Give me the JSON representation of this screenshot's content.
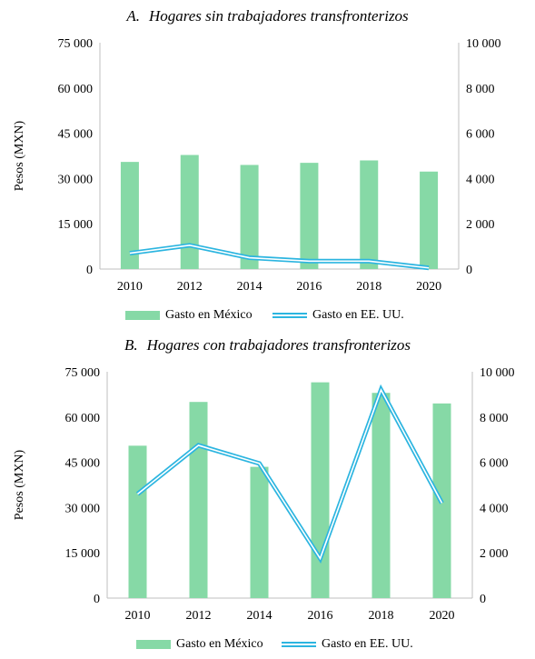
{
  "colors": {
    "bar": "#86d9a6",
    "line_outer": "#2cb5e0",
    "line_inner": "#ffffff",
    "axis": "#bfbfbf"
  },
  "chart_data": [
    {
      "type": "bar+line",
      "title_letter": "A.",
      "title": "Hogares sin trabajadores transfronterizos",
      "ylabel": "Pesos (MXN)",
      "xlabel": "",
      "categories": [
        "2010",
        "2012",
        "2014",
        "2016",
        "2018",
        "2020"
      ],
      "ylim_left": [
        0,
        75000
      ],
      "ylim_right": [
        0,
        10000
      ],
      "yticks_left": [
        "75 000",
        "60 000",
        "45 000",
        "30 000",
        "15 000",
        "0"
      ],
      "yticks_right": [
        "10 000",
        "8 000",
        "6 000",
        "4 000",
        "2 000",
        "0"
      ],
      "series": [
        {
          "name": "Gasto en México",
          "type": "bar",
          "axis": "left",
          "values": [
            35500,
            37800,
            34500,
            35200,
            36000,
            32300
          ]
        },
        {
          "name": "Gasto en EE. UU.",
          "type": "line",
          "axis": "right",
          "values": [
            700,
            1050,
            500,
            350,
            350,
            50
          ]
        }
      ]
    },
    {
      "type": "bar+line",
      "title_letter": "B.",
      "title": "Hogares con trabajadores transfronterizos",
      "ylabel": "Pesos (MXN)",
      "xlabel": "",
      "categories": [
        "2010",
        "2012",
        "2014",
        "2016",
        "2018",
        "2020"
      ],
      "ylim_left": [
        0,
        75000
      ],
      "ylim_right": [
        0,
        10000
      ],
      "yticks_left": [
        "75 000",
        "60 000",
        "45 000",
        "30 000",
        "15 000",
        "0"
      ],
      "yticks_right": [
        "10 000",
        "8 000",
        "6 000",
        "4 000",
        "2 000",
        "0"
      ],
      "series": [
        {
          "name": "Gasto en México",
          "type": "bar",
          "axis": "left",
          "values": [
            50500,
            65000,
            43500,
            71500,
            68000,
            64500
          ]
        },
        {
          "name": "Gasto en EE. UU.",
          "type": "line",
          "axis": "right",
          "values": [
            4600,
            6750,
            5950,
            1750,
            9200,
            4200
          ]
        }
      ]
    }
  ]
}
